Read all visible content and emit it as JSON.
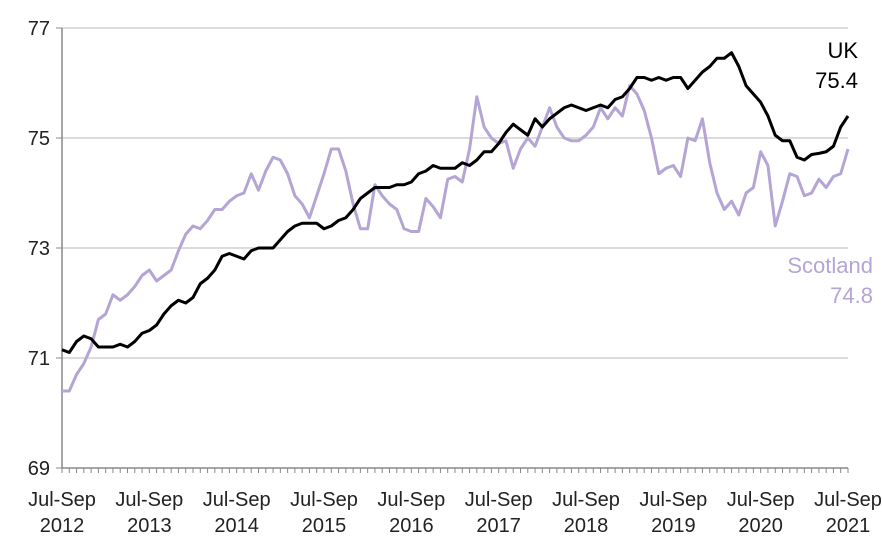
{
  "chart_data": {
    "type": "line",
    "categories": [
      "Jul-Sep 2012",
      null,
      null,
      null,
      null,
      null,
      null,
      null,
      null,
      null,
      null,
      null,
      "Jul-Sep 2013",
      null,
      null,
      null,
      null,
      null,
      null,
      null,
      null,
      null,
      null,
      null,
      "Jul-Sep 2014",
      null,
      null,
      null,
      null,
      null,
      null,
      null,
      null,
      null,
      null,
      null,
      "Jul-Sep 2015",
      null,
      null,
      null,
      null,
      null,
      null,
      null,
      null,
      null,
      null,
      null,
      "Jul-Sep 2016",
      null,
      null,
      null,
      null,
      null,
      null,
      null,
      null,
      null,
      null,
      null,
      "Jul-Sep 2017",
      null,
      null,
      null,
      null,
      null,
      null,
      null,
      null,
      null,
      null,
      null,
      "Jul-Sep 2018",
      null,
      null,
      null,
      null,
      null,
      null,
      null,
      null,
      null,
      null,
      null,
      "Jul-Sep 2019",
      null,
      null,
      null,
      null,
      null,
      null,
      null,
      null,
      null,
      null,
      null,
      "Jul-Sep 2020",
      null,
      null,
      null,
      null,
      null,
      null,
      null,
      null,
      null,
      null,
      null,
      "Jul-Sep 2021"
    ],
    "series": [
      {
        "name": "UK",
        "color": "#000000",
        "values": [
          71.15,
          71.1,
          71.3,
          71.4,
          71.35,
          71.2,
          71.2,
          71.2,
          71.25,
          71.2,
          71.3,
          71.45,
          71.5,
          71.6,
          71.8,
          71.95,
          72.05,
          72.0,
          72.1,
          72.35,
          72.45,
          72.6,
          72.85,
          72.9,
          72.85,
          72.8,
          72.95,
          73.0,
          73.0,
          73.0,
          73.15,
          73.3,
          73.4,
          73.45,
          73.45,
          73.45,
          73.35,
          73.4,
          73.5,
          73.55,
          73.7,
          73.9,
          74.0,
          74.1,
          74.1,
          74.1,
          74.15,
          74.15,
          74.2,
          74.35,
          74.4,
          74.5,
          74.45,
          74.45,
          74.45,
          74.55,
          74.5,
          74.6,
          74.75,
          74.75,
          74.9,
          75.1,
          75.25,
          75.15,
          75.05,
          75.35,
          75.2,
          75.35,
          75.45,
          75.55,
          75.6,
          75.55,
          75.5,
          75.55,
          75.6,
          75.55,
          75.7,
          75.75,
          75.9,
          76.1,
          76.1,
          76.05,
          76.1,
          76.05,
          76.1,
          76.1,
          75.9,
          76.05,
          76.2,
          76.3,
          76.45,
          76.45,
          76.55,
          76.3,
          75.95,
          75.8,
          75.65,
          75.4,
          75.05,
          74.95,
          74.95,
          74.65,
          74.6,
          74.7,
          74.72,
          74.75,
          74.85,
          75.2,
          75.4
        ]
      },
      {
        "name": "Scotland",
        "color": "#b4a5d5",
        "values": [
          70.4,
          70.4,
          70.7,
          70.9,
          71.2,
          71.7,
          71.8,
          72.15,
          72.05,
          72.15,
          72.3,
          72.5,
          72.6,
          72.4,
          72.5,
          72.6,
          72.95,
          73.25,
          73.4,
          73.35,
          73.5,
          73.7,
          73.7,
          73.85,
          73.95,
          74.0,
          74.35,
          74.05,
          74.4,
          74.65,
          74.6,
          74.35,
          73.95,
          73.8,
          73.55,
          73.95,
          74.35,
          74.8,
          74.8,
          74.4,
          73.8,
          73.35,
          73.35,
          74.15,
          73.95,
          73.8,
          73.7,
          73.35,
          73.3,
          73.3,
          73.9,
          73.75,
          73.55,
          74.25,
          74.3,
          74.2,
          74.8,
          75.75,
          75.2,
          75.0,
          74.9,
          74.95,
          74.45,
          74.8,
          75.0,
          74.85,
          75.2,
          75.55,
          75.2,
          75.0,
          74.95,
          74.95,
          75.05,
          75.2,
          75.55,
          75.35,
          75.55,
          75.4,
          75.95,
          75.8,
          75.5,
          75.0,
          74.35,
          74.45,
          74.5,
          74.3,
          75.0,
          74.95,
          75.35,
          74.55,
          74.0,
          73.7,
          73.85,
          73.6,
          74.0,
          74.1,
          74.75,
          74.5,
          73.4,
          73.85,
          74.35,
          74.3,
          73.95,
          74.0,
          74.25,
          74.1,
          74.3,
          74.35,
          74.8
        ]
      }
    ],
    "ylim": [
      69,
      77
    ],
    "yticks": [
      69,
      71,
      73,
      75,
      77
    ],
    "grid": true
  }
}
